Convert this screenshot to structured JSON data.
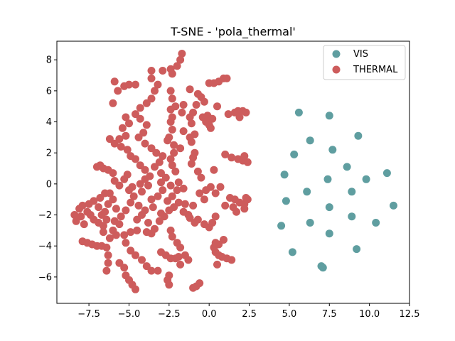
{
  "chart_data": {
    "type": "scatter",
    "title": "T-SNE - 'pola_thermal'",
    "xlabel": "",
    "ylabel": "",
    "xlim": [
      -9.5,
      12.5
    ],
    "ylim": [
      -7.7,
      9.2
    ],
    "xticks": [
      -7.5,
      -5.0,
      -2.5,
      0.0,
      2.5,
      5.0,
      7.5,
      10.0,
      12.5
    ],
    "xtick_labels": [
      "−7.5",
      "−5.0",
      "−2.5",
      "0.0",
      "2.5",
      "5.0",
      "7.5",
      "10.0",
      "12.5"
    ],
    "yticks": [
      -6,
      -4,
      -2,
      0,
      2,
      4,
      6,
      8
    ],
    "ytick_labels": [
      "−6",
      "−4",
      "−2",
      "0",
      "2",
      "4",
      "6",
      "8"
    ],
    "grid": false,
    "legend_position": "top-right",
    "series": [
      {
        "name": "VIS",
        "color": "#5f9ea0",
        "points": [
          [
            5.6,
            4.6
          ],
          [
            7.5,
            4.4
          ],
          [
            9.3,
            3.1
          ],
          [
            6.3,
            2.8
          ],
          [
            5.3,
            1.9
          ],
          [
            7.7,
            2.2
          ],
          [
            8.6,
            1.1
          ],
          [
            4.7,
            0.6
          ],
          [
            11.1,
            0.7
          ],
          [
            7.4,
            0.3
          ],
          [
            9.8,
            0.3
          ],
          [
            6.1,
            -0.5
          ],
          [
            8.9,
            -0.5
          ],
          [
            4.8,
            -1.1
          ],
          [
            11.5,
            -1.4
          ],
          [
            7.5,
            -1.5
          ],
          [
            8.9,
            -2.1
          ],
          [
            4.5,
            -2.7
          ],
          [
            6.3,
            -2.5
          ],
          [
            10.4,
            -2.5
          ],
          [
            7.5,
            -3.2
          ],
          [
            9.2,
            -4.2
          ],
          [
            5.2,
            -4.4
          ],
          [
            7.0,
            -5.3
          ],
          [
            7.1,
            -5.4
          ]
        ]
      },
      {
        "name": "THERMAL",
        "color": "#cd5c5c",
        "points": [
          [
            -1.7,
            8.4
          ],
          [
            -1.8,
            8.0
          ],
          [
            -2.0,
            7.6
          ],
          [
            -2.4,
            7.4
          ],
          [
            -2.9,
            7.3
          ],
          [
            -2.3,
            7.1
          ],
          [
            -3.6,
            7.3
          ],
          [
            -3.6,
            6.8
          ],
          [
            -3.2,
            6.4
          ],
          [
            -3.4,
            6.0
          ],
          [
            -3.6,
            5.5
          ],
          [
            -3.9,
            5.2
          ],
          [
            -4.3,
            4.9
          ],
          [
            -5.0,
            6.4
          ],
          [
            -5.3,
            6.3
          ],
          [
            -5.7,
            6.0
          ],
          [
            -5.9,
            6.6
          ],
          [
            -6.0,
            5.2
          ],
          [
            -4.6,
            6.4
          ],
          [
            -2.4,
            6.0
          ],
          [
            -2.3,
            5.5
          ],
          [
            -2.1,
            5.0
          ],
          [
            -1.6,
            5.1
          ],
          [
            -2.4,
            4.8
          ],
          [
            -1.7,
            4.6
          ],
          [
            -2.3,
            4.3
          ],
          [
            -2.4,
            4.0
          ],
          [
            -2.3,
            3.5
          ],
          [
            -2.5,
            3.0
          ],
          [
            -2.6,
            2.8
          ],
          [
            -2.2,
            2.5
          ],
          [
            -1.8,
            2.3
          ],
          [
            -2.2,
            2.0
          ],
          [
            -2.4,
            1.6
          ],
          [
            -2.3,
            1.2
          ],
          [
            -2.1,
            0.8
          ],
          [
            -1.6,
            3.4
          ],
          [
            -1.2,
            3.0
          ],
          [
            -1.1,
            2.7
          ],
          [
            -1.2,
            6.1
          ],
          [
            -0.7,
            5.8
          ],
          [
            -0.5,
            5.6
          ],
          [
            -0.3,
            5.3
          ],
          [
            -0.8,
            5.1
          ],
          [
            -1.0,
            4.6
          ],
          [
            -1.2,
            4.3
          ],
          [
            -1.1,
            3.9
          ],
          [
            -0.4,
            4.3
          ],
          [
            -0.2,
            4.0
          ],
          [
            0.0,
            3.8
          ],
          [
            0.1,
            3.6
          ],
          [
            -0.1,
            4.4
          ],
          [
            0.2,
            4.2
          ],
          [
            0.5,
            5.0
          ],
          [
            0.0,
            6.5
          ],
          [
            0.3,
            6.5
          ],
          [
            0.6,
            6.6
          ],
          [
            0.9,
            6.8
          ],
          [
            1.1,
            6.8
          ],
          [
            -0.9,
            3.2
          ],
          [
            1.2,
            4.5
          ],
          [
            1.6,
            4.6
          ],
          [
            1.8,
            4.7
          ],
          [
            2.1,
            4.7
          ],
          [
            2.3,
            4.6
          ],
          [
            1.9,
            4.3
          ],
          [
            1.0,
            1.9
          ],
          [
            1.4,
            1.7
          ],
          [
            1.8,
            1.6
          ],
          [
            2.1,
            1.5
          ],
          [
            2.4,
            1.4
          ],
          [
            2.2,
            1.8
          ],
          [
            -0.9,
            2.0
          ],
          [
            -1.0,
            1.7
          ],
          [
            -1.1,
            1.3
          ],
          [
            -0.7,
            0.8
          ],
          [
            -0.5,
            0.4
          ],
          [
            0.3,
            0.9
          ],
          [
            0.1,
            -0.2
          ],
          [
            -0.2,
            -0.4
          ],
          [
            0.4,
            -0.6
          ],
          [
            0.7,
            -0.2
          ],
          [
            1.3,
            -0.9
          ],
          [
            1.6,
            -1.0
          ],
          [
            1.9,
            -1.2
          ],
          [
            2.2,
            -1.3
          ],
          [
            2.4,
            -1.0
          ],
          [
            2.2,
            -1.6
          ],
          [
            1.7,
            -1.8
          ],
          [
            1.0,
            -1.4
          ],
          [
            0.4,
            -2.1
          ],
          [
            0.2,
            -2.5
          ],
          [
            0.0,
            -2.8
          ],
          [
            -0.3,
            -2.6
          ],
          [
            -0.7,
            -2.3
          ],
          [
            -0.9,
            -2.5
          ],
          [
            -1.3,
            -2.0
          ],
          [
            -1.6,
            -1.8
          ],
          [
            -1.5,
            -1.3
          ],
          [
            -1.9,
            -1.2
          ],
          [
            -2.2,
            -1.5
          ],
          [
            -2.5,
            -1.7
          ],
          [
            -2.8,
            -2.1
          ],
          [
            -3.0,
            -1.9
          ],
          [
            -2.6,
            -1.1
          ],
          [
            -2.3,
            -0.8
          ],
          [
            -2.0,
            -0.4
          ],
          [
            -2.4,
            -0.1
          ],
          [
            -2.9,
            -0.4
          ],
          [
            -3.2,
            -0.8
          ],
          [
            -3.6,
            -1.0
          ],
          [
            -4.0,
            -1.7
          ],
          [
            -4.2,
            -2.0
          ],
          [
            -4.5,
            -2.3
          ],
          [
            -3.8,
            -2.5
          ],
          [
            -3.4,
            -2.9
          ],
          [
            -3.6,
            -3.2
          ],
          [
            -3.9,
            -3.1
          ],
          [
            -4.5,
            -3.0
          ],
          [
            -4.9,
            -3.1
          ],
          [
            -5.3,
            -3.3
          ],
          [
            -5.8,
            -3.3
          ],
          [
            -6.2,
            -3.5
          ],
          [
            -6.6,
            -3.1
          ],
          [
            -6.9,
            -2.5
          ],
          [
            -7.2,
            -2.3
          ],
          [
            -7.6,
            -1.8
          ],
          [
            -8.0,
            -2.1
          ],
          [
            -8.3,
            -2.4
          ],
          [
            -8.4,
            -2.0
          ],
          [
            -8.1,
            -1.6
          ],
          [
            -7.9,
            -1.4
          ],
          [
            -7.5,
            -1.3
          ],
          [
            -7.2,
            -1.1
          ],
          [
            -6.8,
            -0.9
          ],
          [
            -6.5,
            -0.6
          ],
          [
            -6.2,
            -0.6
          ],
          [
            -6.0,
            -1.0
          ],
          [
            -6.3,
            -1.3
          ],
          [
            -6.5,
            -1.8
          ],
          [
            -6.7,
            -2.0
          ],
          [
            -6.4,
            -2.3
          ],
          [
            -5.9,
            -2.4
          ],
          [
            -5.5,
            -2.1
          ],
          [
            -5.2,
            -1.7
          ],
          [
            -4.9,
            -1.2
          ],
          [
            -4.7,
            -0.8
          ],
          [
            -5.0,
            -0.4
          ],
          [
            -4.8,
            -0.2
          ],
          [
            -4.3,
            0.0
          ],
          [
            -4.0,
            0.3
          ],
          [
            -3.7,
            0.5
          ],
          [
            -4.0,
            0.9
          ],
          [
            -4.3,
            1.2
          ],
          [
            -4.6,
            1.6
          ],
          [
            -4.9,
            1.8
          ],
          [
            -5.1,
            2.2
          ],
          [
            -5.5,
            2.4
          ],
          [
            -5.9,
            2.6
          ],
          [
            -6.2,
            2.9
          ],
          [
            -5.6,
            2.9
          ],
          [
            -5.2,
            3.1
          ],
          [
            -5.4,
            3.6
          ],
          [
            -5.0,
            3.9
          ],
          [
            -5.2,
            4.3
          ],
          [
            -4.6,
            4.5
          ],
          [
            -4.3,
            4.2
          ],
          [
            -3.9,
            3.8
          ],
          [
            -4.1,
            3.3
          ],
          [
            -4.4,
            3.0
          ],
          [
            -4.0,
            2.6
          ],
          [
            -3.6,
            2.3
          ],
          [
            -3.3,
            2.0
          ],
          [
            -2.9,
            1.8
          ],
          [
            -3.1,
            1.4
          ],
          [
            -3.4,
            1.1
          ],
          [
            -3.0,
            0.7
          ],
          [
            -2.7,
            0.4
          ],
          [
            -3.0,
            0.1
          ],
          [
            -6.8,
            1.2
          ],
          [
            -7.0,
            1.1
          ],
          [
            -6.6,
            1.0
          ],
          [
            -6.3,
            0.9
          ],
          [
            -6.0,
            0.7
          ],
          [
            -5.9,
            0.2
          ],
          [
            -5.6,
            -0.1
          ],
          [
            -5.3,
            0.3
          ],
          [
            -5.1,
            0.6
          ],
          [
            -7.9,
            -3.7
          ],
          [
            -7.6,
            -3.8
          ],
          [
            -7.3,
            -3.9
          ],
          [
            -7.0,
            -4.0
          ],
          [
            -6.7,
            -4.0
          ],
          [
            -6.4,
            -4.1
          ],
          [
            -6.3,
            -4.6
          ],
          [
            -6.3,
            -5.1
          ],
          [
            -6.4,
            -5.6
          ],
          [
            -5.6,
            -5.1
          ],
          [
            -5.3,
            -5.4
          ],
          [
            -5.2,
            -5.9
          ],
          [
            -5.0,
            -6.2
          ],
          [
            -4.8,
            -6.5
          ],
          [
            -4.6,
            -6.8
          ],
          [
            -5.2,
            -3.8
          ],
          [
            -4.9,
            -4.3
          ],
          [
            -4.6,
            -4.6
          ],
          [
            -4.2,
            -4.9
          ],
          [
            -3.9,
            -5.3
          ],
          [
            -3.6,
            -5.6
          ],
          [
            -3.2,
            -5.6
          ],
          [
            -3.0,
            -4.4
          ],
          [
            -2.7,
            -4.6
          ],
          [
            -2.4,
            -4.8
          ],
          [
            -2.1,
            -4.8
          ],
          [
            -1.9,
            -4.7
          ],
          [
            -1.5,
            -4.6
          ],
          [
            -1.3,
            -4.9
          ],
          [
            -1.8,
            -5.2
          ],
          [
            -2.5,
            -5.9
          ],
          [
            -2.6,
            -6.2
          ],
          [
            -2.5,
            -6.5
          ],
          [
            -2.4,
            -3.0
          ],
          [
            -2.3,
            -3.4
          ],
          [
            -2.0,
            -3.8
          ],
          [
            -1.8,
            -4.1
          ],
          [
            -1.0,
            -6.7
          ],
          [
            -0.8,
            -6.6
          ],
          [
            -0.6,
            -6.4
          ],
          [
            0.4,
            -3.8
          ],
          [
            0.3,
            -4.1
          ],
          [
            0.4,
            -4.4
          ],
          [
            0.6,
            -4.6
          ],
          [
            0.8,
            -4.7
          ],
          [
            1.1,
            -4.8
          ],
          [
            1.4,
            -4.9
          ],
          [
            0.6,
            -3.9
          ],
          [
            0.9,
            -3.6
          ],
          [
            0.5,
            -5.2
          ],
          [
            -3.8,
            -0.1
          ],
          [
            -4.2,
            -0.5
          ],
          [
            -3.5,
            -1.5
          ],
          [
            -1.6,
            -0.3
          ],
          [
            -1.9,
            0.1
          ],
          [
            -0.6,
            -0.6
          ],
          [
            -0.3,
            -1.0
          ],
          [
            -1.0,
            -1.4
          ],
          [
            -5.8,
            -1.6
          ],
          [
            -5.6,
            -2.6
          ],
          [
            -6.0,
            -3.0
          ],
          [
            -4.4,
            -1.4
          ],
          [
            -3.1,
            -2.4
          ],
          [
            -1.2,
            -2.2
          ],
          [
            1.5,
            -1.5
          ],
          [
            2.3,
            -0.9
          ],
          [
            -7.8,
            -2.6
          ],
          [
            -7.4,
            -2.0
          ],
          [
            -6.9,
            -1.5
          ],
          [
            -6.6,
            -2.7
          ]
        ]
      }
    ]
  }
}
